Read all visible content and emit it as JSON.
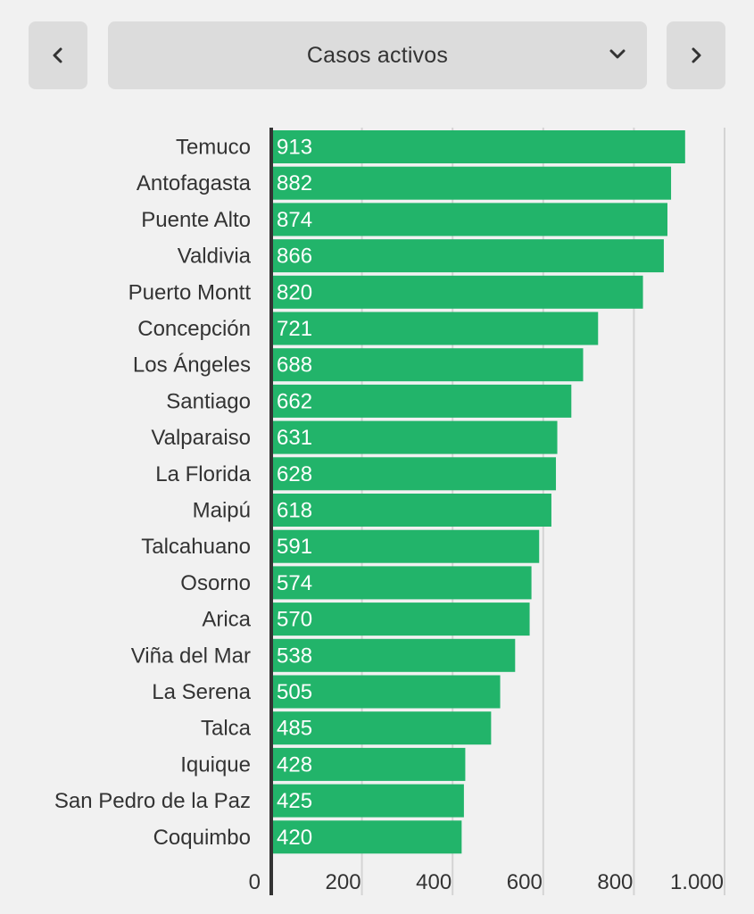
{
  "header": {
    "prev_icon": "chevron-left-icon",
    "next_icon": "chevron-right-icon",
    "dropdown_label": "Casos activos",
    "dropdown_icon": "chevron-down-icon"
  },
  "colors": {
    "bar": "#22b46a",
    "gridline": "#d4d4d4",
    "axis": "#333333",
    "text": "#333333",
    "button_bg": "#dcdcdc",
    "background": "#f1f1f1"
  },
  "chart_data": {
    "type": "bar",
    "orientation": "horizontal",
    "title": "",
    "xlabel": "",
    "ylabel": "",
    "categories": [
      "Temuco",
      "Antofagasta",
      "Puente Alto",
      "Valdivia",
      "Puerto Montt",
      "Concepción",
      "Los Ángeles",
      "Santiago",
      "Valparaiso",
      "La Florida",
      "Maipú",
      "Talcahuano",
      "Osorno",
      "Arica",
      "Viña del Mar",
      "La Serena",
      "Talca",
      "Iquique",
      "San Pedro de la Paz",
      "Coquimbo"
    ],
    "values": [
      913,
      882,
      874,
      866,
      820,
      721,
      688,
      662,
      631,
      628,
      618,
      591,
      574,
      570,
      538,
      505,
      485,
      428,
      425,
      420
    ],
    "value_labels": [
      "913",
      "882",
      "874",
      "866",
      "820",
      "721",
      "688",
      "662",
      "631",
      "628",
      "618",
      "591",
      "574",
      "570",
      "538",
      "505",
      "485",
      "428",
      "425",
      "420"
    ],
    "xlim": [
      0,
      1000
    ],
    "xticks": [
      0,
      200,
      400,
      600,
      800,
      1000
    ],
    "xtick_labels": [
      "0",
      "200",
      "400",
      "600",
      "800",
      "1.000"
    ],
    "grid": true,
    "legend": "none"
  }
}
